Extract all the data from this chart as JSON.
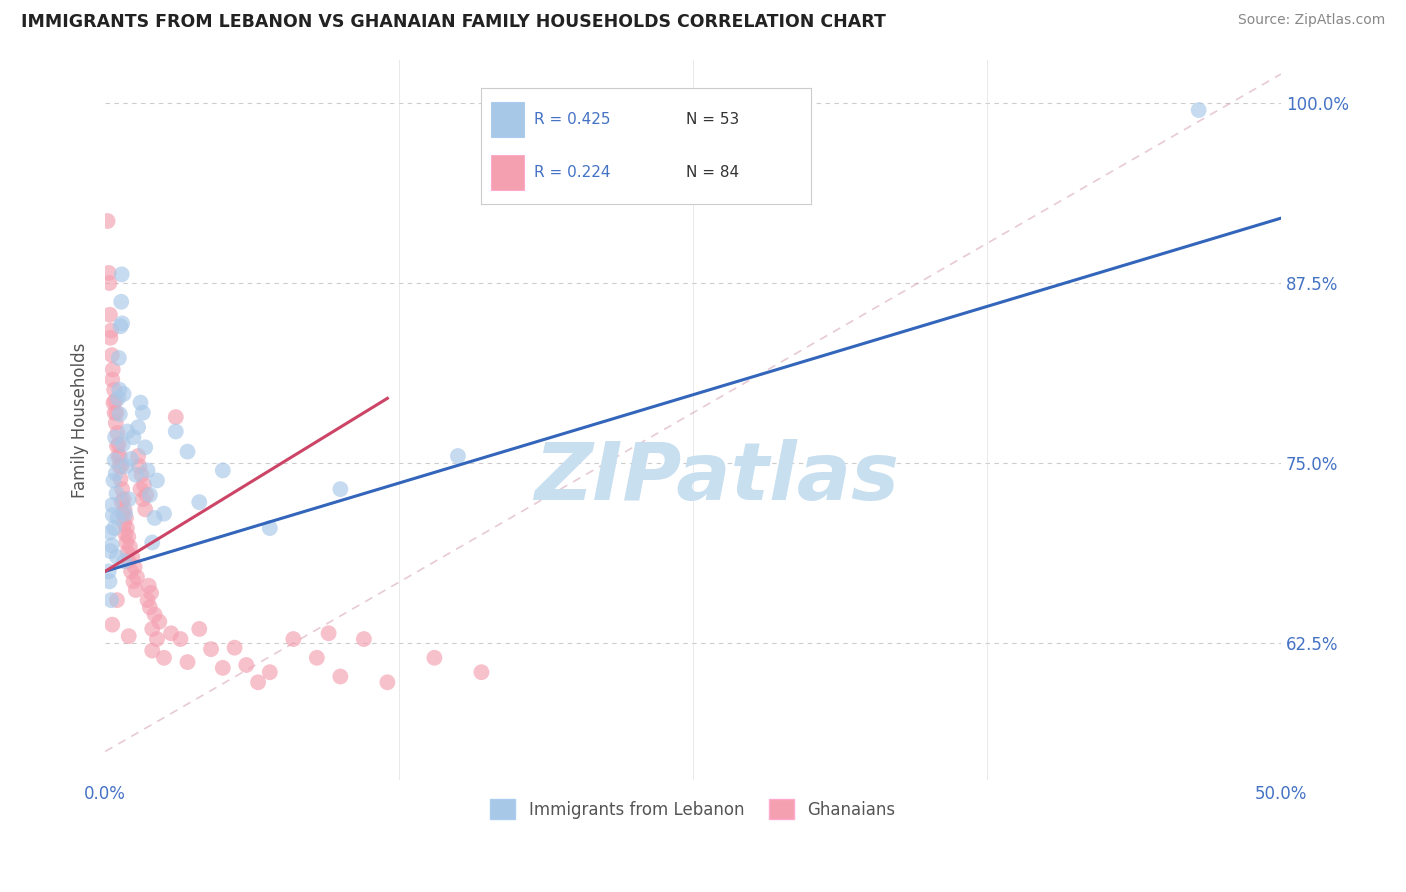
{
  "title": "IMMIGRANTS FROM LEBANON VS GHANAIAN FAMILY HOUSEHOLDS CORRELATION CHART",
  "source_text": "Source: ZipAtlas.com",
  "ylabel": "Family Households",
  "xlim": [
    0.0,
    50.0
  ],
  "ylim": [
    53.0,
    103.0
  ],
  "yticks": [
    62.5,
    75.0,
    87.5,
    100.0
  ],
  "xticks": [
    0.0,
    12.5,
    25.0,
    37.5,
    50.0
  ],
  "xtick_labels": [
    "0.0%",
    "",
    "",
    "",
    "50.0%"
  ],
  "ytick_labels": [
    "62.5%",
    "75.0%",
    "87.5%",
    "100.0%"
  ],
  "series1_label": "Immigrants from Lebanon",
  "series2_label": "Ghanaians",
  "blue_color": "#a8c8e8",
  "pink_color": "#f4a0b0",
  "blue_line_color": "#3366bb",
  "pink_line_color": "#cc4466",
  "watermark": "ZIPatlas",
  "watermark_color": "#c8dff0",
  "axis_color": "#4472c4",
  "blue_line": {
    "x0": 0,
    "y0": 67.5,
    "x1": 50,
    "y1": 92.0
  },
  "pink_line": {
    "x0": 0,
    "y0": 67.5,
    "x1": 12,
    "y1": 79.5
  },
  "dash_line": {
    "x0": 0,
    "y0": 55,
    "x1": 50,
    "y1": 102
  },
  "blue_scatter": [
    [
      0.15,
      67.5
    ],
    [
      0.18,
      66.8
    ],
    [
      0.2,
      70.2
    ],
    [
      0.22,
      68.9
    ],
    [
      0.25,
      65.5
    ],
    [
      0.28,
      69.3
    ],
    [
      0.3,
      72.1
    ],
    [
      0.32,
      71.4
    ],
    [
      0.35,
      73.8
    ],
    [
      0.38,
      70.5
    ],
    [
      0.4,
      75.2
    ],
    [
      0.42,
      76.8
    ],
    [
      0.45,
      74.3
    ],
    [
      0.48,
      72.9
    ],
    [
      0.5,
      68.5
    ],
    [
      0.52,
      71.2
    ],
    [
      0.55,
      79.5
    ],
    [
      0.58,
      82.3
    ],
    [
      0.6,
      80.1
    ],
    [
      0.62,
      78.4
    ],
    [
      0.65,
      84.5
    ],
    [
      0.68,
      86.2
    ],
    [
      0.7,
      88.1
    ],
    [
      0.72,
      84.7
    ],
    [
      0.75,
      76.3
    ],
    [
      0.78,
      79.8
    ],
    [
      0.8,
      68.2
    ],
    [
      0.85,
      71.5
    ],
    [
      0.9,
      74.8
    ],
    [
      0.95,
      77.2
    ],
    [
      1.0,
      72.5
    ],
    [
      1.1,
      75.3
    ],
    [
      1.2,
      76.8
    ],
    [
      1.3,
      74.2
    ],
    [
      1.4,
      77.5
    ],
    [
      1.5,
      79.2
    ],
    [
      1.6,
      78.5
    ],
    [
      1.7,
      76.1
    ],
    [
      1.8,
      74.5
    ],
    [
      1.9,
      72.8
    ],
    [
      2.0,
      69.5
    ],
    [
      2.1,
      71.2
    ],
    [
      2.2,
      73.8
    ],
    [
      2.5,
      71.5
    ],
    [
      3.0,
      77.2
    ],
    [
      3.5,
      75.8
    ],
    [
      4.0,
      72.3
    ],
    [
      5.0,
      74.5
    ],
    [
      7.0,
      70.5
    ],
    [
      10.0,
      73.2
    ],
    [
      15.0,
      75.5
    ],
    [
      46.5,
      99.5
    ]
  ],
  "pink_scatter": [
    [
      0.1,
      91.8
    ],
    [
      0.15,
      88.2
    ],
    [
      0.18,
      87.5
    ],
    [
      0.2,
      85.3
    ],
    [
      0.22,
      83.7
    ],
    [
      0.25,
      84.2
    ],
    [
      0.28,
      82.5
    ],
    [
      0.3,
      80.8
    ],
    [
      0.32,
      81.5
    ],
    [
      0.35,
      79.2
    ],
    [
      0.38,
      80.1
    ],
    [
      0.4,
      78.5
    ],
    [
      0.42,
      79.3
    ],
    [
      0.45,
      77.8
    ],
    [
      0.48,
      78.5
    ],
    [
      0.5,
      76.2
    ],
    [
      0.52,
      77.1
    ],
    [
      0.55,
      75.5
    ],
    [
      0.58,
      76.3
    ],
    [
      0.6,
      74.8
    ],
    [
      0.62,
      75.5
    ],
    [
      0.65,
      73.9
    ],
    [
      0.68,
      74.8
    ],
    [
      0.7,
      72.3
    ],
    [
      0.72,
      73.2
    ],
    [
      0.75,
      71.5
    ],
    [
      0.78,
      72.5
    ],
    [
      0.8,
      70.8
    ],
    [
      0.82,
      71.8
    ],
    [
      0.85,
      70.1
    ],
    [
      0.88,
      71.2
    ],
    [
      0.9,
      69.5
    ],
    [
      0.92,
      70.5
    ],
    [
      0.95,
      68.8
    ],
    [
      0.98,
      69.9
    ],
    [
      1.0,
      68.2
    ],
    [
      1.05,
      69.2
    ],
    [
      1.1,
      67.5
    ],
    [
      1.15,
      68.5
    ],
    [
      1.2,
      66.8
    ],
    [
      1.25,
      67.8
    ],
    [
      1.3,
      66.2
    ],
    [
      1.35,
      67.1
    ],
    [
      1.4,
      75.5
    ],
    [
      1.45,
      74.8
    ],
    [
      1.5,
      73.2
    ],
    [
      1.55,
      74.2
    ],
    [
      1.6,
      72.5
    ],
    [
      1.65,
      73.5
    ],
    [
      1.7,
      71.8
    ],
    [
      1.75,
      72.8
    ],
    [
      1.8,
      65.5
    ],
    [
      1.85,
      66.5
    ],
    [
      1.9,
      65.0
    ],
    [
      1.95,
      66.0
    ],
    [
      2.0,
      63.5
    ],
    [
      2.1,
      64.5
    ],
    [
      2.2,
      62.8
    ],
    [
      2.3,
      64.0
    ],
    [
      2.5,
      61.5
    ],
    [
      2.8,
      63.2
    ],
    [
      3.0,
      78.2
    ],
    [
      3.2,
      62.8
    ],
    [
      3.5,
      61.2
    ],
    [
      4.0,
      63.5
    ],
    [
      4.5,
      62.1
    ],
    [
      5.0,
      60.8
    ],
    [
      5.5,
      62.2
    ],
    [
      6.0,
      61.0
    ],
    [
      6.5,
      59.8
    ],
    [
      7.0,
      60.5
    ],
    [
      8.0,
      62.8
    ],
    [
      9.0,
      61.5
    ],
    [
      9.5,
      63.2
    ],
    [
      10.0,
      60.2
    ],
    [
      11.0,
      62.8
    ],
    [
      12.0,
      59.8
    ],
    [
      14.0,
      61.5
    ],
    [
      16.0,
      60.5
    ],
    [
      1.0,
      63.0
    ],
    [
      2.0,
      62.0
    ],
    [
      0.5,
      65.5
    ],
    [
      0.3,
      63.8
    ]
  ]
}
